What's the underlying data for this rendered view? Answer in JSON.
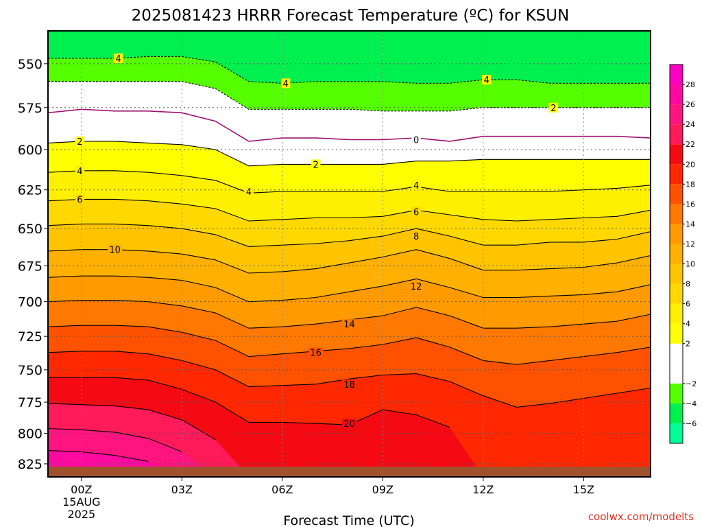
{
  "chart_data": {
    "type": "heatmap",
    "title": "2025081423 HRRR Forecast Temperature (ºC) for KSUN",
    "xlabel": "Forecast Time (UTC)",
    "ylabel": "",
    "x_ticks": [
      {
        "label": "00Z",
        "hour": 0,
        "sub": [
          "15AUG",
          "2025"
        ]
      },
      {
        "label": "03Z",
        "hour": 3,
        "sub": []
      },
      {
        "label": "06Z",
        "hour": 6,
        "sub": []
      },
      {
        "label": "09Z",
        "hour": 9,
        "sub": []
      },
      {
        "label": "12Z",
        "hour": 12,
        "sub": []
      },
      {
        "label": "15Z",
        "hour": 15,
        "sub": []
      }
    ],
    "xlim": [
      -1,
      17
    ],
    "y_ticks": [
      550,
      575,
      600,
      625,
      650,
      675,
      700,
      725,
      750,
      775,
      800,
      825
    ],
    "ylim": [
      532,
      836
    ],
    "y_scale": "log",
    "y_inverted": true,
    "ground_level_hPa": 832,
    "colorbar": {
      "labels": [
        "28",
        "26",
        "24",
        "22",
        "20",
        "18",
        "16",
        "14",
        "12",
        "10",
        "8",
        "6",
        "4",
        "2",
        "−2",
        "−4",
        "−6"
      ],
      "bands": [
        {
          "lo": -8,
          "hi": -6,
          "color": "#00ff99"
        },
        {
          "lo": -6,
          "hi": -4,
          "color": "#00f050"
        },
        {
          "lo": -4,
          "hi": -2,
          "color": "#55ff00"
        },
        {
          "lo": -2,
          "hi": 2,
          "color": "#ffffff"
        },
        {
          "lo": 2,
          "hi": 4,
          "color": "#ffff00"
        },
        {
          "lo": 4,
          "hi": 6,
          "color": "#fff000"
        },
        {
          "lo": 6,
          "hi": 8,
          "color": "#ffd800"
        },
        {
          "lo": 8,
          "hi": 10,
          "color": "#ffc400"
        },
        {
          "lo": 10,
          "hi": 12,
          "color": "#ffb000"
        },
        {
          "lo": 12,
          "hi": 14,
          "color": "#ff9a00"
        },
        {
          "lo": 14,
          "hi": 16,
          "color": "#ff7800"
        },
        {
          "lo": 16,
          "hi": 18,
          "color": "#ff5200"
        },
        {
          "lo": 18,
          "hi": 20,
          "color": "#ff2800"
        },
        {
          "lo": 20,
          "hi": 22,
          "color": "#f50a14"
        },
        {
          "lo": 22,
          "hi": 24,
          "color": "#ff1a5a"
        },
        {
          "lo": 24,
          "hi": 26,
          "color": "#ff1480"
        },
        {
          "lo": 26,
          "hi": 28,
          "color": "#ff0aa0"
        },
        {
          "lo": 28,
          "hi": 30,
          "color": "#ff00c0"
        }
      ]
    },
    "isotherm_hours": [
      -1,
      0,
      1,
      2,
      3,
      4,
      5,
      6,
      7,
      8,
      9,
      10,
      11,
      12,
      13,
      14,
      15,
      16,
      17
    ],
    "isotherms": [
      {
        "t": -4,
        "p": [
          547,
          547,
          547,
          546,
          546,
          549,
          560,
          561,
          560,
          560,
          560,
          561,
          561,
          559,
          559,
          561,
          561,
          561,
          561
        ]
      },
      {
        "t": -2,
        "p": [
          560,
          560,
          560,
          560,
          560,
          564,
          576,
          576,
          576,
          576,
          577,
          577,
          577,
          575,
          575,
          575,
          575,
          575,
          575
        ]
      },
      {
        "t": 0,
        "p": [
          578,
          576,
          577,
          577,
          578,
          583,
          595,
          593,
          593,
          594,
          594,
          593,
          595,
          592,
          592,
          592,
          592,
          592,
          593
        ]
      },
      {
        "t": 2,
        "p": [
          596,
          595,
          595,
          596,
          597,
          600,
          610,
          609,
          609,
          609,
          609,
          607,
          607,
          606,
          606,
          606,
          606,
          606,
          606
        ]
      },
      {
        "t": 4,
        "p": [
          614,
          613,
          613,
          614,
          616,
          619,
          627,
          626,
          626,
          626,
          626,
          623,
          626,
          626,
          626,
          626,
          625,
          624,
          622
        ]
      },
      {
        "t": 6,
        "p": [
          632,
          631,
          631,
          632,
          634,
          637,
          645,
          644,
          643,
          643,
          642,
          638,
          641,
          644,
          645,
          644,
          643,
          642,
          638
        ]
      },
      {
        "t": 8,
        "p": [
          648,
          647,
          647,
          648,
          650,
          654,
          662,
          661,
          660,
          658,
          655,
          650,
          655,
          661,
          661,
          659,
          659,
          657,
          652
        ]
      },
      {
        "t": 10,
        "p": [
          665,
          664,
          664,
          665,
          667,
          671,
          680,
          679,
          677,
          673,
          669,
          664,
          670,
          678,
          678,
          677,
          676,
          673,
          668
        ]
      },
      {
        "t": 12,
        "p": [
          683,
          682,
          682,
          683,
          685,
          690,
          700,
          699,
          697,
          693,
          689,
          684,
          690,
          697,
          697,
          696,
          695,
          693,
          688
        ]
      },
      {
        "t": 14,
        "p": [
          700,
          699,
          699,
          700,
          703,
          708,
          719,
          718,
          716,
          713,
          710,
          704,
          710,
          719,
          719,
          718,
          716,
          714,
          709
        ]
      },
      {
        "t": 16,
        "p": [
          718,
          717,
          717,
          718,
          722,
          728,
          740,
          738,
          736,
          734,
          731,
          726,
          733,
          743,
          746,
          743,
          740,
          737,
          733
        ]
      },
      {
        "t": 18,
        "p": [
          737,
          736,
          736,
          738,
          743,
          750,
          763,
          762,
          761,
          757,
          754,
          753,
          759,
          770,
          779,
          776,
          772,
          768,
          764
        ]
      },
      {
        "t": 20,
        "p": [
          756,
          756,
          756,
          758,
          765,
          775,
          791,
          791,
          792,
          793,
          781,
          785,
          795,
          836,
          836,
          836,
          836,
          836,
          836
        ]
      },
      {
        "t": 22,
        "p": [
          776,
          777,
          778,
          781,
          789,
          805,
          836,
          836,
          836,
          836,
          836,
          836,
          836,
          836,
          836,
          836,
          836,
          836,
          836
        ]
      },
      {
        "t": 24,
        "p": [
          796,
          797,
          799,
          804,
          815,
          836,
          836,
          836,
          836,
          836,
          836,
          836,
          836,
          836,
          836,
          836,
          836,
          836,
          836
        ]
      },
      {
        "t": 26,
        "p": [
          814,
          815,
          818,
          823,
          836,
          836,
          836,
          836,
          836,
          836,
          836,
          836,
          836,
          836,
          836,
          836,
          836,
          836,
          836
        ]
      }
    ],
    "contour_labels": [
      {
        "text": "4",
        "hour": 1.1,
        "p": 547
      },
      {
        "text": "4",
        "hour": 6.1,
        "p": 561
      },
      {
        "text": "4",
        "hour": 12.1,
        "p": 559
      },
      {
        "text": "2",
        "hour": 14.1,
        "p": 575
      },
      {
        "text": "0",
        "hour": 10.0,
        "p": 594
      },
      {
        "text": "2",
        "hour": -0.05,
        "p": 595
      },
      {
        "text": "4",
        "hour": -0.05,
        "p": 613
      },
      {
        "text": "2",
        "hour": 7.0,
        "p": 609
      },
      {
        "text": "4",
        "hour": 5.0,
        "p": 626
      },
      {
        "text": "4",
        "hour": 10.0,
        "p": 622
      },
      {
        "text": "6",
        "hour": -0.05,
        "p": 631
      },
      {
        "text": "6",
        "hour": 10.0,
        "p": 639
      },
      {
        "text": "8",
        "hour": 10.0,
        "p": 655
      },
      {
        "text": "10",
        "hour": 1.0,
        "p": 664
      },
      {
        "text": "12",
        "hour": 10.0,
        "p": 689
      },
      {
        "text": "14",
        "hour": 8.0,
        "p": 716
      },
      {
        "text": "16",
        "hour": 7.0,
        "p": 737
      },
      {
        "text": "18",
        "hour": 8.0,
        "p": 761
      },
      {
        "text": "20",
        "hour": 8.0,
        "p": 792
      }
    ]
  },
  "credit": "coolwx.com/modelts"
}
